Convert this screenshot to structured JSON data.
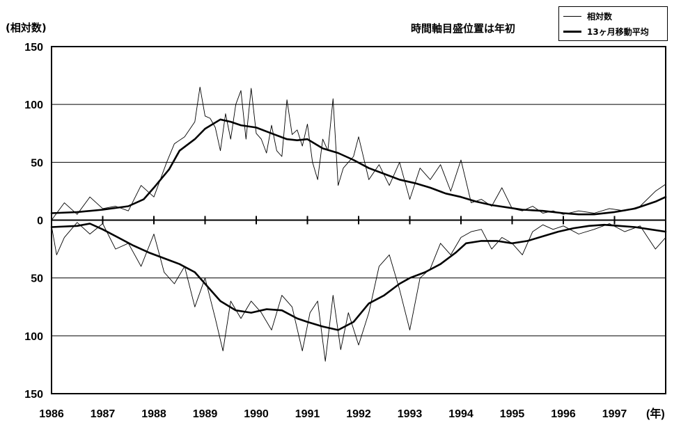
{
  "chart_data": {
    "type": "line",
    "ylabel": "(相対数)",
    "note": "時間軸目盛位置は年初",
    "xunit": "(年)",
    "x_ticks": [
      "1986",
      "1987",
      "1988",
      "1989",
      "1990",
      "1991",
      "1992",
      "1993",
      "1994",
      "1995",
      "1996",
      "1997"
    ],
    "y_ticks_upper": [
      "150",
      "100",
      "50",
      "0"
    ],
    "y_ticks_lower": [
      "50",
      "100",
      "150"
    ],
    "xlim": [
      1986,
      1998
    ],
    "ylim_upper": [
      0,
      150
    ],
    "ylim_lower": [
      0,
      150
    ],
    "grid": true,
    "legend": {
      "position": "top-right",
      "items": [
        "相対数",
        "13ヶ月移動平均"
      ]
    },
    "series": [
      {
        "name": "相対数",
        "panel": "upper",
        "x": [
          1986.0,
          1986.25,
          1986.5,
          1986.75,
          1987.0,
          1987.25,
          1987.5,
          1987.75,
          1988.0,
          1988.25,
          1988.4,
          1988.6,
          1988.8,
          1988.9,
          1989.0,
          1989.1,
          1989.2,
          1989.3,
          1989.4,
          1989.5,
          1989.6,
          1989.7,
          1989.8,
          1989.9,
          1990.0,
          1990.1,
          1990.2,
          1990.3,
          1990.4,
          1990.5,
          1990.6,
          1990.7,
          1990.8,
          1990.9,
          1991.0,
          1991.1,
          1991.2,
          1991.3,
          1991.4,
          1991.5,
          1991.6,
          1991.7,
          1991.8,
          1991.9,
          1992.0,
          1992.2,
          1992.4,
          1992.6,
          1992.8,
          1993.0,
          1993.2,
          1993.4,
          1993.6,
          1993.8,
          1994.0,
          1994.2,
          1994.4,
          1994.6,
          1994.8,
          1995.0,
          1995.2,
          1995.4,
          1995.6,
          1995.8,
          1996.0,
          1996.3,
          1996.6,
          1996.9,
          1997.2,
          1997.5,
          1997.8,
          1998.0
        ],
        "values": [
          0,
          15,
          5,
          20,
          10,
          12,
          8,
          30,
          20,
          50,
          66,
          72,
          85,
          115,
          90,
          88,
          80,
          60,
          92,
          70,
          100,
          112,
          70,
          114,
          75,
          70,
          58,
          82,
          60,
          55,
          104,
          74,
          78,
          64,
          83,
          50,
          35,
          70,
          60,
          105,
          30,
          45,
          50,
          55,
          72,
          35,
          48,
          30,
          50,
          18,
          45,
          35,
          48,
          25,
          52,
          15,
          18,
          12,
          28,
          10,
          8,
          12,
          6,
          8,
          5,
          8,
          6,
          10,
          8,
          12,
          25,
          31
        ]
      },
      {
        "name": "13ヶ月移動平均",
        "panel": "upper",
        "x": [
          1986.0,
          1986.5,
          1987.0,
          1987.5,
          1987.8,
          1988.0,
          1988.3,
          1988.5,
          1988.8,
          1989.0,
          1989.3,
          1989.5,
          1989.7,
          1990.0,
          1990.3,
          1990.6,
          1990.8,
          1991.0,
          1991.3,
          1991.6,
          1991.9,
          1992.2,
          1992.5,
          1992.8,
          1993.1,
          1993.4,
          1993.7,
          1994.0,
          1994.3,
          1994.6,
          1994.9,
          1995.2,
          1995.6,
          1996.0,
          1996.3,
          1996.6,
          1997.0,
          1997.4,
          1997.8,
          1998.0
        ],
        "values": [
          6,
          7,
          9,
          12,
          18,
          28,
          44,
          60,
          70,
          79,
          87,
          85,
          82,
          80,
          75,
          70,
          69,
          70,
          62,
          58,
          52,
          45,
          40,
          35,
          32,
          28,
          23,
          20,
          16,
          13,
          11,
          9,
          8,
          6,
          5,
          5,
          7,
          10,
          16,
          20
        ]
      },
      {
        "name": "相対数",
        "panel": "lower",
        "x": [
          1986.0,
          1986.1,
          1986.25,
          1986.5,
          1986.75,
          1987.0,
          1987.25,
          1987.5,
          1987.75,
          1988.0,
          1988.2,
          1988.4,
          1988.6,
          1988.8,
          1989.0,
          1989.2,
          1989.35,
          1989.5,
          1989.7,
          1989.9,
          1990.1,
          1990.3,
          1990.5,
          1990.7,
          1990.9,
          1991.05,
          1991.2,
          1991.35,
          1991.5,
          1991.65,
          1991.8,
          1992.0,
          1992.2,
          1992.4,
          1992.6,
          1992.8,
          1993.0,
          1993.2,
          1993.4,
          1993.6,
          1993.8,
          1994.0,
          1994.2,
          1994.4,
          1994.6,
          1994.8,
          1995.0,
          1995.2,
          1995.4,
          1995.6,
          1995.8,
          1996.0,
          1996.3,
          1996.6,
          1996.9,
          1997.2,
          1997.5,
          1997.8,
          1998.0
        ],
        "values": [
          5,
          30,
          15,
          2,
          12,
          3,
          25,
          20,
          40,
          12,
          45,
          55,
          40,
          75,
          50,
          85,
          113,
          70,
          85,
          70,
          80,
          95,
          65,
          75,
          113,
          80,
          70,
          122,
          65,
          112,
          80,
          108,
          80,
          40,
          30,
          60,
          95,
          50,
          42,
          20,
          30,
          15,
          10,
          8,
          25,
          15,
          20,
          30,
          10,
          4,
          8,
          5,
          12,
          8,
          3,
          10,
          5,
          25,
          15
        ]
      },
      {
        "name": "13ヶ月移動平均",
        "panel": "lower",
        "x": [
          1986.0,
          1986.5,
          1986.75,
          1987.0,
          1987.3,
          1987.6,
          1987.9,
          1988.2,
          1988.5,
          1988.8,
          1989.0,
          1989.3,
          1989.6,
          1989.9,
          1990.2,
          1990.5,
          1990.8,
          1991.0,
          1991.3,
          1991.6,
          1991.9,
          1992.2,
          1992.5,
          1992.8,
          1993.0,
          1993.3,
          1993.6,
          1993.9,
          1994.1,
          1994.4,
          1994.7,
          1995.0,
          1995.3,
          1995.6,
          1995.9,
          1996.2,
          1996.5,
          1996.8,
          1997.1,
          1997.4,
          1997.7,
          1998.0
        ],
        "values": [
          6,
          5,
          3,
          8,
          15,
          22,
          28,
          33,
          38,
          45,
          55,
          70,
          78,
          80,
          77,
          78,
          85,
          88,
          92,
          95,
          88,
          72,
          65,
          55,
          50,
          45,
          38,
          28,
          20,
          18,
          18,
          20,
          18,
          14,
          10,
          7,
          5,
          4,
          5,
          6,
          8,
          10
        ]
      }
    ]
  }
}
